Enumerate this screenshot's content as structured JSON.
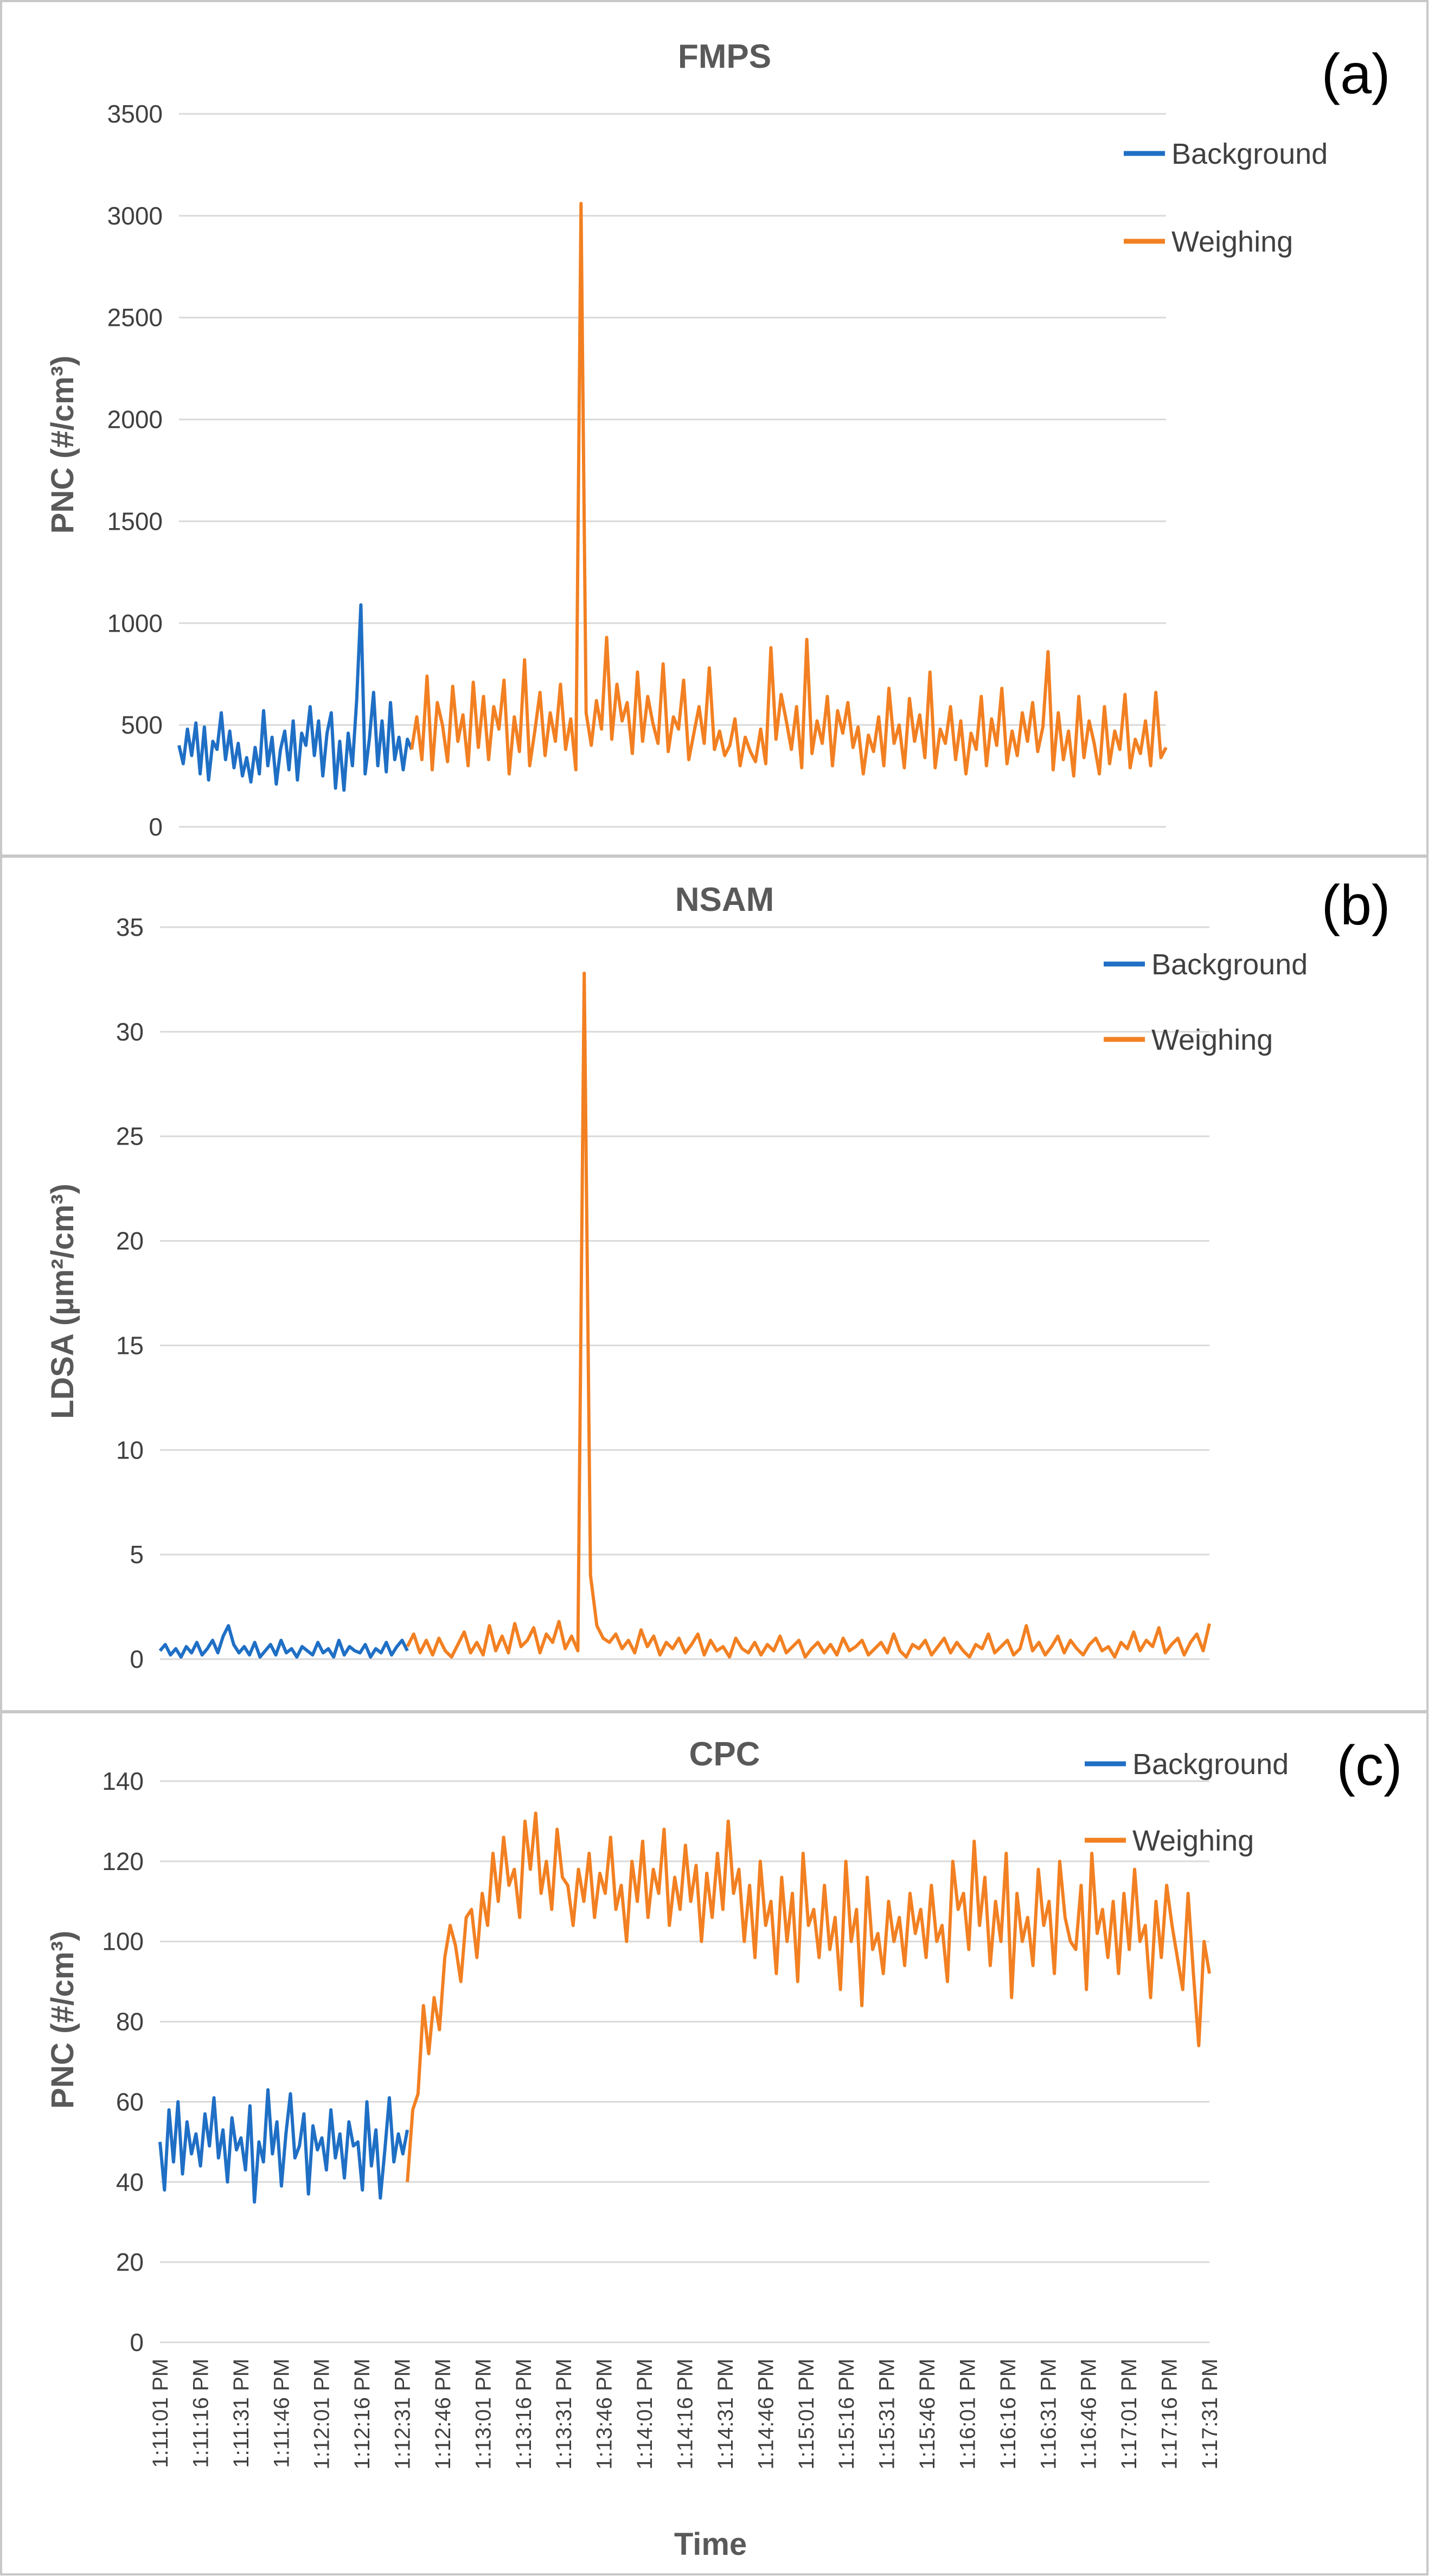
{
  "figure": {
    "time_axis": {
      "label": "Time",
      "ticks": [
        "1:11:01 PM",
        "1:11:16 PM",
        "1:11:31 PM",
        "1:11:46 PM",
        "1:12:01 PM",
        "1:12:16 PM",
        "1:12:31 PM",
        "1:12:46 PM",
        "1:13:01 PM",
        "1:13:16 PM",
        "1:13:31 PM",
        "1:13:46 PM",
        "1:14:01 PM",
        "1:14:16 PM",
        "1:14:31 PM",
        "1:14:46 PM",
        "1:15:01 PM",
        "1:15:16 PM",
        "1:15:31 PM",
        "1:15:46 PM",
        "1:16:01 PM",
        "1:16:16 PM",
        "1:16:31 PM",
        "1:16:46 PM",
        "1:17:01 PM",
        "1:17:16 PM",
        "1:17:31 PM"
      ]
    },
    "colors": {
      "background": "#1f6fc5",
      "weighing": "#f28022",
      "grid": "#d9d9d9",
      "frame": "#c8c8c8"
    }
  },
  "chart_data": [
    {
      "type": "line",
      "panel": "(a)",
      "title": "FMPS",
      "ylabel": "PNC (#/cm³)",
      "ylim": [
        0,
        3500
      ],
      "yticks": [
        0,
        500,
        1000,
        1500,
        2000,
        2500,
        3000,
        3500
      ],
      "xlabel": "",
      "legend": [
        {
          "name": "Background"
        },
        {
          "name": "Weighing"
        }
      ],
      "series": [
        {
          "name": "Background",
          "x_range": [
            0,
            33
          ],
          "values": [
            400,
            310,
            480,
            350,
            510,
            260,
            490,
            230,
            420,
            380,
            560,
            330,
            470,
            290,
            410,
            250,
            340,
            220,
            390,
            260,
            570,
            300,
            440,
            210,
            380,
            470,
            280,
            520,
            230,
            460,
            400,
            590,
            350,
            520,
            250,
            460,
            560,
            190,
            420,
            180,
            460,
            300,
            620,
            1090,
            260,
            430,
            660,
            300,
            520,
            270,
            610,
            330,
            440,
            280,
            430,
            380
          ]
        },
        {
          "name": "Weighing",
          "x_range": [
            33,
            140
          ],
          "values": [
            380,
            540,
            330,
            740,
            280,
            610,
            500,
            320,
            690,
            420,
            550,
            300,
            710,
            390,
            640,
            330,
            590,
            480,
            720,
            260,
            540,
            370,
            820,
            300,
            470,
            660,
            350,
            560,
            420,
            700,
            380,
            530,
            280,
            3060,
            560,
            400,
            620,
            480,
            930,
            430,
            700,
            520,
            610,
            360,
            760,
            420,
            640,
            510,
            410,
            800,
            370,
            540,
            480,
            720,
            330,
            460,
            590,
            410,
            780,
            380,
            470,
            350,
            400,
            530,
            300,
            440,
            370,
            320,
            480,
            310,
            880,
            430,
            650,
            520,
            380,
            590,
            290,
            920,
            360,
            520,
            410,
            640,
            300,
            570,
            460,
            610,
            390,
            490,
            260,
            450,
            370,
            540,
            300,
            680,
            410,
            500,
            290,
            630,
            420,
            550,
            340,
            760,
            290,
            480,
            410,
            590,
            330,
            520,
            260,
            460,
            380,
            640,
            300,
            530,
            400,
            680,
            310,
            470,
            350,
            560,
            420,
            610,
            370,
            490,
            860,
            280,
            560,
            330,
            470,
            250,
            640,
            340,
            520,
            410,
            260,
            590,
            310,
            470,
            380,
            650,
            290,
            430,
            360,
            520,
            300,
            660,
            340,
            390
          ]
        }
      ]
    },
    {
      "type": "line",
      "panel": "(b)",
      "title": "NSAM",
      "ylabel": "LDSA (µm²/cm³)",
      "ylim": [
        0,
        35
      ],
      "yticks": [
        0,
        5,
        10,
        15,
        20,
        25,
        30,
        35
      ],
      "xlabel": "",
      "legend": [
        {
          "name": "Background"
        },
        {
          "name": "Weighing"
        }
      ],
      "series": [
        {
          "name": "Background",
          "x_range": [
            0,
            33
          ],
          "values": [
            0.4,
            0.7,
            0.2,
            0.5,
            0.1,
            0.6,
            0.3,
            0.8,
            0.2,
            0.5,
            0.9,
            0.3,
            1.1,
            1.6,
            0.7,
            0.3,
            0.6,
            0.2,
            0.8,
            0.1,
            0.4,
            0.7,
            0.2,
            0.9,
            0.3,
            0.5,
            0.1,
            0.6,
            0.4,
            0.2,
            0.8,
            0.3,
            0.5,
            0.1,
            0.9,
            0.2,
            0.6,
            0.4,
            0.3,
            0.7,
            0.1,
            0.5,
            0.3,
            0.8,
            0.2,
            0.6,
            0.9,
            0.4
          ]
        },
        {
          "name": "Weighing",
          "x_range": [
            33,
            140
          ],
          "values": [
            0.6,
            1.2,
            0.3,
            0.9,
            0.2,
            1.0,
            0.4,
            0.1,
            0.7,
            1.3,
            0.3,
            0.8,
            0.2,
            1.6,
            0.4,
            1.1,
            0.3,
            1.7,
            0.6,
            0.9,
            1.5,
            0.3,
            1.2,
            0.8,
            1.8,
            0.5,
            1.1,
            0.4,
            32.8,
            4.0,
            1.6,
            1.0,
            0.8,
            1.2,
            0.5,
            0.9,
            0.3,
            1.4,
            0.6,
            1.1,
            0.2,
            0.8,
            0.5,
            1.0,
            0.3,
            0.7,
            1.2,
            0.2,
            0.9,
            0.4,
            0.6,
            0.1,
            1.0,
            0.5,
            0.3,
            0.8,
            0.2,
            0.7,
            0.4,
            1.1,
            0.3,
            0.6,
            0.9,
            0.1,
            0.5,
            0.8,
            0.3,
            0.7,
            0.2,
            1.0,
            0.4,
            0.6,
            0.9,
            0.2,
            0.5,
            0.8,
            0.3,
            1.2,
            0.4,
            0.1,
            0.7,
            0.5,
            0.9,
            0.2,
            0.6,
            1.0,
            0.3,
            0.8,
            0.4,
            0.1,
            0.7,
            0.5,
            1.2,
            0.3,
            0.6,
            0.9,
            0.2,
            0.5,
            1.6,
            0.4,
            0.8,
            0.2,
            0.6,
            1.1,
            0.3,
            0.9,
            0.5,
            0.2,
            0.7,
            1.0,
            0.4,
            0.6,
            0.1,
            0.8,
            0.5,
            1.3,
            0.4,
            0.9,
            0.6,
            1.5,
            0.3,
            0.7,
            1.0,
            0.2,
            0.8,
            1.2,
            0.4,
            1.7
          ]
        }
      ]
    },
    {
      "type": "line",
      "panel": "(c)",
      "title": "CPC",
      "ylabel": "PNC (#/cm³)",
      "ylim": [
        0,
        140
      ],
      "yticks": [
        0,
        20,
        40,
        60,
        80,
        100,
        120,
        140
      ],
      "xlabel": "Time",
      "legend": [
        {
          "name": "Background"
        },
        {
          "name": "Weighing"
        }
      ],
      "series": [
        {
          "name": "Background",
          "x_range": [
            0,
            33
          ],
          "values": [
            50,
            38,
            58,
            45,
            60,
            42,
            55,
            47,
            52,
            44,
            57,
            49,
            61,
            46,
            53,
            40,
            56,
            48,
            51,
            43,
            59,
            35,
            50,
            45,
            63,
            47,
            55,
            39,
            52,
            62,
            46,
            49,
            57,
            37,
            54,
            48,
            51,
            43,
            58,
            46,
            52,
            41,
            55,
            49,
            50,
            38,
            60,
            44,
            53,
            36,
            48,
            61,
            45,
            52,
            47,
            53
          ]
        },
        {
          "name": "Weighing",
          "x_range": [
            33,
            140
          ],
          "values": [
            40,
            58,
            62,
            84,
            72,
            86,
            78,
            96,
            104,
            99,
            90,
            106,
            108,
            96,
            112,
            104,
            122,
            110,
            126,
            114,
            118,
            106,
            130,
            118,
            132,
            112,
            120,
            108,
            128,
            116,
            114,
            104,
            118,
            110,
            122,
            106,
            117,
            112,
            126,
            108,
            114,
            100,
            120,
            110,
            125,
            106,
            118,
            112,
            128,
            104,
            116,
            108,
            124,
            110,
            119,
            100,
            117,
            106,
            122,
            108,
            130,
            112,
            118,
            100,
            114,
            96,
            120,
            104,
            110,
            92,
            116,
            100,
            112,
            90,
            122,
            104,
            108,
            96,
            114,
            98,
            106,
            88,
            120,
            100,
            108,
            84,
            116,
            98,
            102,
            92,
            110,
            100,
            106,
            94,
            112,
            102,
            108,
            96,
            114,
            100,
            104,
            90,
            120,
            108,
            112,
            98,
            125,
            104,
            116,
            94,
            110,
            100,
            122,
            86,
            112,
            100,
            106,
            94,
            118,
            104,
            110,
            92,
            120,
            106,
            100,
            98,
            114,
            88,
            122,
            102,
            108,
            96,
            110,
            92,
            112,
            98,
            118,
            100,
            104,
            86,
            110,
            96,
            114,
            104,
            96,
            88,
            112,
            92,
            74,
            100,
            92
          ]
        }
      ]
    }
  ]
}
